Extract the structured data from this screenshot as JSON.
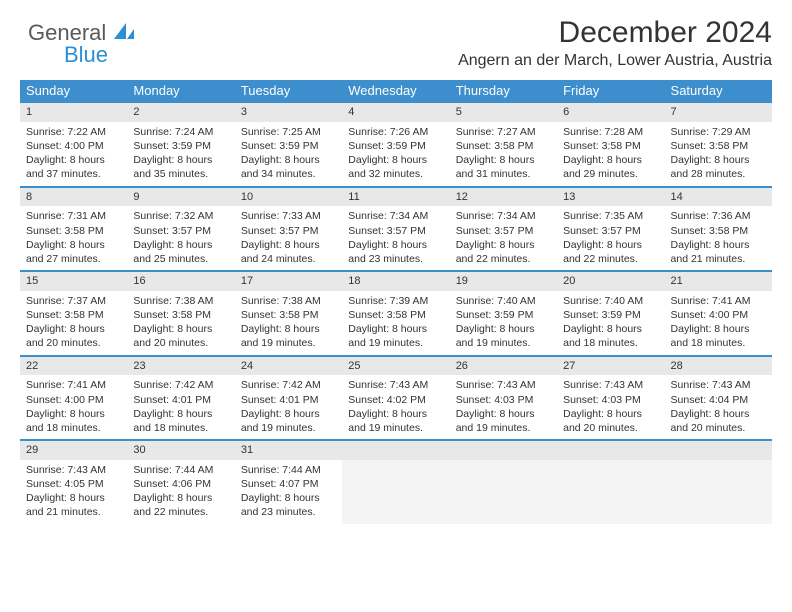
{
  "logo": {
    "part1": "General",
    "part2": "Blue"
  },
  "title": "December 2024",
  "location": "Angern an der March, Lower Austria, Austria",
  "colors": {
    "header_bg": "#3c8ecc",
    "header_text": "#ffffff",
    "border": "#3c8ecc",
    "daynum_bg": "#e8e8e8",
    "logo_gray": "#5a5a5a",
    "logo_blue": "#2a8fd4",
    "text": "#333333"
  },
  "columns": [
    "Sunday",
    "Monday",
    "Tuesday",
    "Wednesday",
    "Thursday",
    "Friday",
    "Saturday"
  ],
  "weeks": [
    [
      {
        "n": "1",
        "sr": "7:22 AM",
        "ss": "4:00 PM",
        "dl": "8 hours and 37 minutes."
      },
      {
        "n": "2",
        "sr": "7:24 AM",
        "ss": "3:59 PM",
        "dl": "8 hours and 35 minutes."
      },
      {
        "n": "3",
        "sr": "7:25 AM",
        "ss": "3:59 PM",
        "dl": "8 hours and 34 minutes."
      },
      {
        "n": "4",
        "sr": "7:26 AM",
        "ss": "3:59 PM",
        "dl": "8 hours and 32 minutes."
      },
      {
        "n": "5",
        "sr": "7:27 AM",
        "ss": "3:58 PM",
        "dl": "8 hours and 31 minutes."
      },
      {
        "n": "6",
        "sr": "7:28 AM",
        "ss": "3:58 PM",
        "dl": "8 hours and 29 minutes."
      },
      {
        "n": "7",
        "sr": "7:29 AM",
        "ss": "3:58 PM",
        "dl": "8 hours and 28 minutes."
      }
    ],
    [
      {
        "n": "8",
        "sr": "7:31 AM",
        "ss": "3:58 PM",
        "dl": "8 hours and 27 minutes."
      },
      {
        "n": "9",
        "sr": "7:32 AM",
        "ss": "3:57 PM",
        "dl": "8 hours and 25 minutes."
      },
      {
        "n": "10",
        "sr": "7:33 AM",
        "ss": "3:57 PM",
        "dl": "8 hours and 24 minutes."
      },
      {
        "n": "11",
        "sr": "7:34 AM",
        "ss": "3:57 PM",
        "dl": "8 hours and 23 minutes."
      },
      {
        "n": "12",
        "sr": "7:34 AM",
        "ss": "3:57 PM",
        "dl": "8 hours and 22 minutes."
      },
      {
        "n": "13",
        "sr": "7:35 AM",
        "ss": "3:57 PM",
        "dl": "8 hours and 22 minutes."
      },
      {
        "n": "14",
        "sr": "7:36 AM",
        "ss": "3:58 PM",
        "dl": "8 hours and 21 minutes."
      }
    ],
    [
      {
        "n": "15",
        "sr": "7:37 AM",
        "ss": "3:58 PM",
        "dl": "8 hours and 20 minutes."
      },
      {
        "n": "16",
        "sr": "7:38 AM",
        "ss": "3:58 PM",
        "dl": "8 hours and 20 minutes."
      },
      {
        "n": "17",
        "sr": "7:38 AM",
        "ss": "3:58 PM",
        "dl": "8 hours and 19 minutes."
      },
      {
        "n": "18",
        "sr": "7:39 AM",
        "ss": "3:58 PM",
        "dl": "8 hours and 19 minutes."
      },
      {
        "n": "19",
        "sr": "7:40 AM",
        "ss": "3:59 PM",
        "dl": "8 hours and 19 minutes."
      },
      {
        "n": "20",
        "sr": "7:40 AM",
        "ss": "3:59 PM",
        "dl": "8 hours and 18 minutes."
      },
      {
        "n": "21",
        "sr": "7:41 AM",
        "ss": "4:00 PM",
        "dl": "8 hours and 18 minutes."
      }
    ],
    [
      {
        "n": "22",
        "sr": "7:41 AM",
        "ss": "4:00 PM",
        "dl": "8 hours and 18 minutes."
      },
      {
        "n": "23",
        "sr": "7:42 AM",
        "ss": "4:01 PM",
        "dl": "8 hours and 18 minutes."
      },
      {
        "n": "24",
        "sr": "7:42 AM",
        "ss": "4:01 PM",
        "dl": "8 hours and 19 minutes."
      },
      {
        "n": "25",
        "sr": "7:43 AM",
        "ss": "4:02 PM",
        "dl": "8 hours and 19 minutes."
      },
      {
        "n": "26",
        "sr": "7:43 AM",
        "ss": "4:03 PM",
        "dl": "8 hours and 19 minutes."
      },
      {
        "n": "27",
        "sr": "7:43 AM",
        "ss": "4:03 PM",
        "dl": "8 hours and 20 minutes."
      },
      {
        "n": "28",
        "sr": "7:43 AM",
        "ss": "4:04 PM",
        "dl": "8 hours and 20 minutes."
      }
    ],
    [
      {
        "n": "29",
        "sr": "7:43 AM",
        "ss": "4:05 PM",
        "dl": "8 hours and 21 minutes."
      },
      {
        "n": "30",
        "sr": "7:44 AM",
        "ss": "4:06 PM",
        "dl": "8 hours and 22 minutes."
      },
      {
        "n": "31",
        "sr": "7:44 AM",
        "ss": "4:07 PM",
        "dl": "8 hours and 23 minutes."
      },
      null,
      null,
      null,
      null
    ]
  ],
  "labels": {
    "sunrise": "Sunrise:",
    "sunset": "Sunset:",
    "daylight": "Daylight:"
  }
}
